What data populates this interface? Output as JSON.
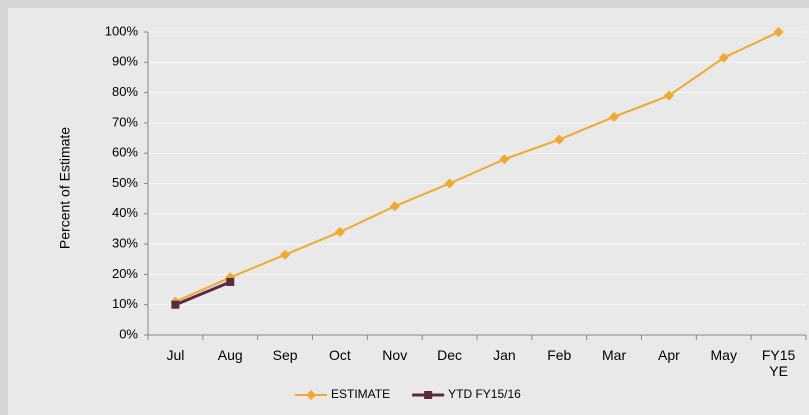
{
  "chart_data": {
    "type": "line",
    "y_label": "Percent of Estimate",
    "categories": [
      "Jul",
      "Aug",
      "Sep",
      "Oct",
      "Nov",
      "Dec",
      "Jan",
      "Feb",
      "Mar",
      "Apr",
      "May",
      "FY15 YE"
    ],
    "series": [
      {
        "name": "ESTIMATE",
        "color": "#f0a830",
        "marker": "diamond",
        "values": [
          11,
          19,
          26.5,
          34,
          42.5,
          50,
          58,
          64.5,
          72,
          79,
          91.5,
          100
        ]
      },
      {
        "name": "YTD FY15/16",
        "color": "#5a2a40",
        "marker": "square",
        "values": [
          10,
          17.5,
          null,
          null,
          null,
          null,
          null,
          null,
          null,
          null,
          null,
          null
        ]
      }
    ],
    "ylim": [
      0,
      100
    ],
    "yticks": [
      {
        "value": 0,
        "label": "0%"
      },
      {
        "value": 10,
        "label": "10%"
      },
      {
        "value": 20,
        "label": "20%"
      },
      {
        "value": 30,
        "label": "30%"
      },
      {
        "value": 40,
        "label": "40%"
      },
      {
        "value": 50,
        "label": "50%"
      },
      {
        "value": 60,
        "label": "60%"
      },
      {
        "value": 70,
        "label": "70%"
      },
      {
        "value": 80,
        "label": "80%"
      },
      {
        "value": 90,
        "label": "90%"
      },
      {
        "value": 100,
        "label": "100%"
      }
    ],
    "grid": true,
    "legend": "bottom"
  }
}
